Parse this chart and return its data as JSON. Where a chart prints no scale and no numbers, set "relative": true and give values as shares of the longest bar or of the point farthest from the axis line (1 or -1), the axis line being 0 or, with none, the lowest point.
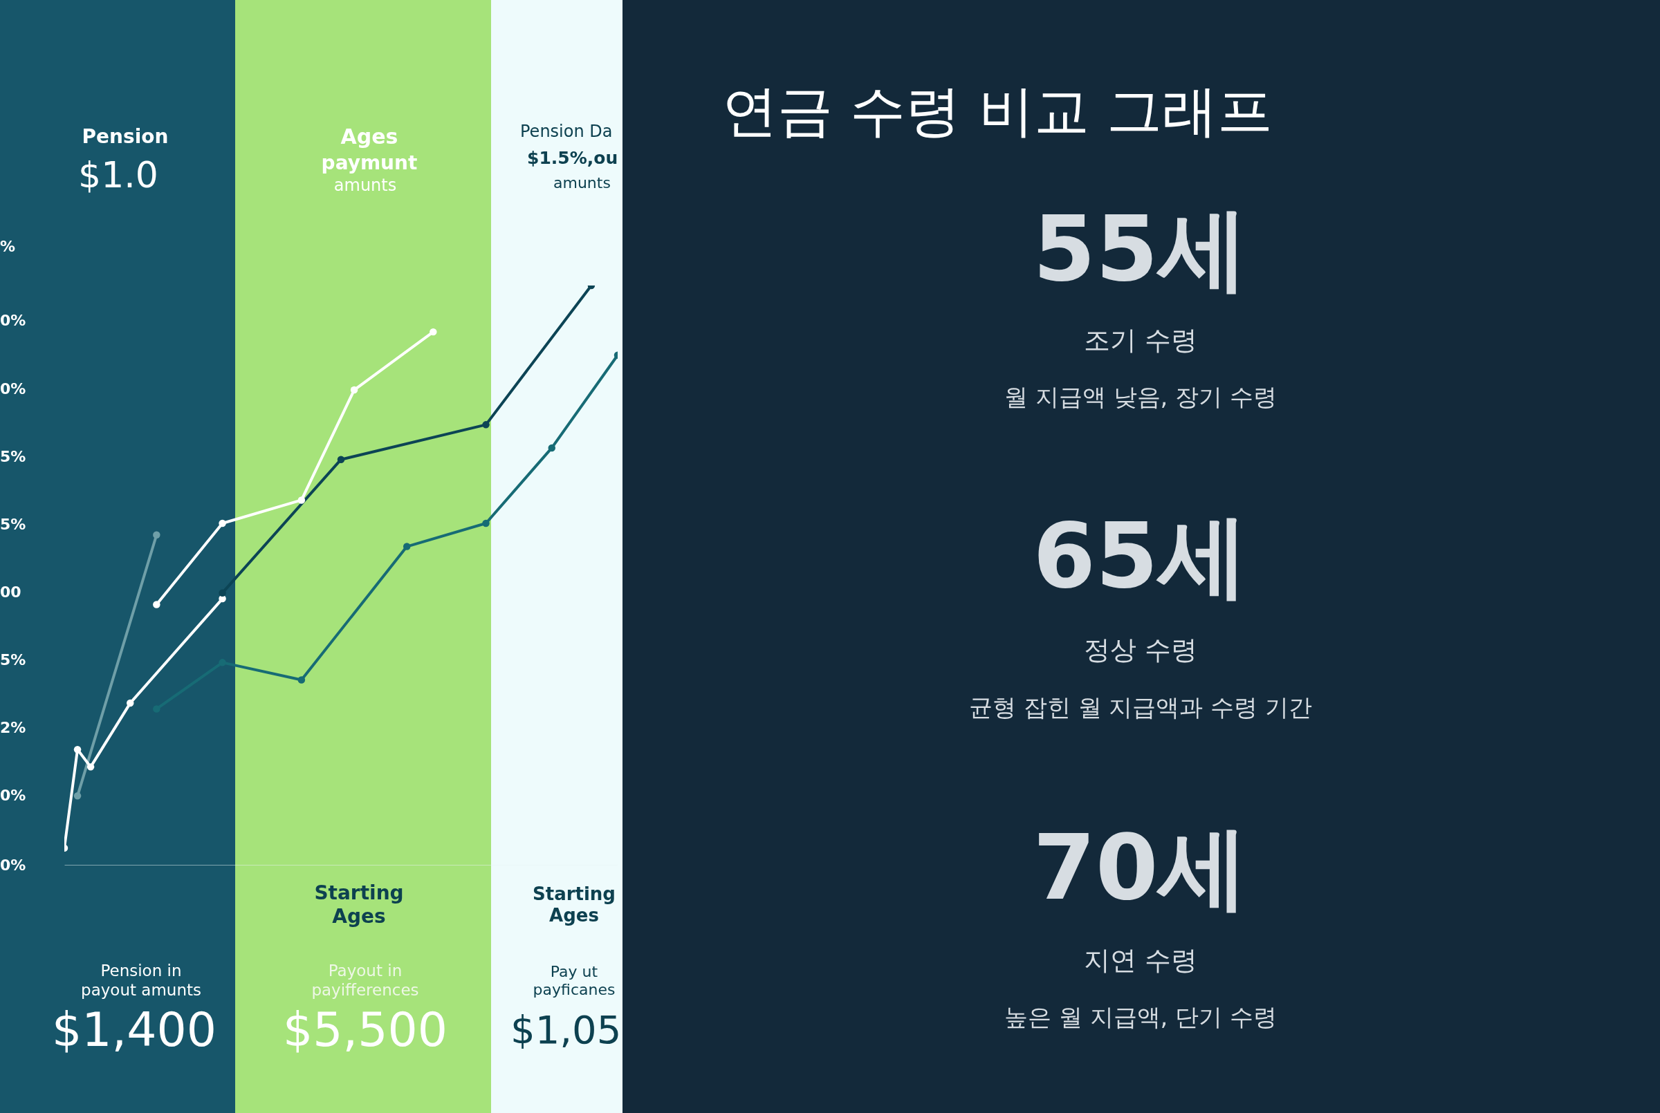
{
  "chart_data": {
    "type": "line",
    "title": "연금 수령 비교 그래프",
    "relative": true,
    "marker": "circle",
    "line_style": "solid",
    "categories": [
      null,
      null,
      null,
      null,
      null,
      null,
      null,
      null,
      null,
      null,
      null,
      null,
      null,
      null,
      null,
      null,
      null,
      null,
      null,
      null,
      null,
      null,
      null,
      null,
      null,
      null,
      null,
      null,
      null,
      null,
      null,
      null,
      null,
      null,
      null,
      null,
      null,
      null,
      null,
      null,
      null,
      null,
      null
    ],
    "series": [
      {
        "color": "#6f9fa8",
        "values": [
          null,
          0.12,
          null,
          null,
          null,
          null,
          null,
          0.57,
          null,
          null,
          null,
          null,
          null,
          null,
          null,
          null,
          null,
          null,
          null,
          null,
          null,
          null,
          null,
          null,
          null,
          null,
          null,
          null,
          null,
          null,
          null,
          null,
          null,
          null,
          null,
          null,
          null,
          null,
          null,
          null,
          null,
          null,
          null
        ]
      },
      {
        "color": "#ffffff",
        "values": [
          0.03,
          0.2,
          0.17,
          null,
          null,
          0.28,
          null,
          null,
          null,
          null,
          null,
          null,
          0.46,
          null,
          null,
          null,
          null,
          null,
          null,
          null,
          null,
          null,
          null,
          null,
          null,
          null,
          null,
          null,
          null,
          null,
          null,
          null,
          null,
          null,
          null,
          null,
          null,
          null,
          null,
          null,
          null,
          null,
          null
        ]
      },
      {
        "color": "#ffffff",
        "values": [
          null,
          null,
          null,
          null,
          null,
          null,
          null,
          0.45,
          null,
          null,
          null,
          null,
          0.59,
          null,
          null,
          null,
          null,
          null,
          0.63,
          null,
          null,
          null,
          0.82,
          null,
          null,
          null,
          null,
          null,
          0.92,
          null,
          null,
          null,
          null,
          null,
          null,
          null,
          null,
          null,
          null,
          null,
          null,
          null,
          null
        ]
      },
      {
        "color": "#0c4455",
        "values": [
          null,
          null,
          null,
          null,
          null,
          null,
          null,
          null,
          null,
          null,
          null,
          null,
          0.47,
          null,
          null,
          null,
          null,
          null,
          null,
          null,
          null,
          0.7,
          null,
          null,
          null,
          null,
          null,
          null,
          null,
          null,
          null,
          null,
          0.76,
          null,
          null,
          null,
          null,
          null,
          null,
          null,
          1,
          null,
          null
        ]
      },
      {
        "color": "#176b75",
        "values": [
          null,
          null,
          null,
          null,
          null,
          null,
          null,
          0.27,
          null,
          null,
          null,
          null,
          0.35,
          null,
          null,
          null,
          null,
          null,
          0.32,
          null,
          null,
          null,
          null,
          null,
          null,
          null,
          0.55,
          null,
          null,
          null,
          null,
          null,
          0.59,
          null,
          null,
          null,
          null,
          0.72,
          null,
          null,
          null,
          null,
          0.88
        ]
      }
    ],
    "annotations": [
      "Pension",
      "$1.0",
      "Ages",
      "paymunt",
      "amunts",
      "Pension Da",
      "$1.5%,ou",
      "amunts",
      "%",
      "0%",
      "0%",
      "5%",
      "5%",
      "00",
      "5%",
      "2%",
      "0%",
      "0%",
      "Starting Ages",
      "Starting Ages",
      "Pension in payout amunts",
      "$1,400",
      "Payout in payifferences",
      "$5,500",
      "Pay ut payficanes",
      "$1,05",
      "55세",
      "조기 수령",
      "월 지급액 낮음, 장기 수령",
      "65세",
      "정상 수령",
      "균형 잡힌 월 지급액과 수령 기간",
      "70세",
      "지연 수령",
      "높은 월 지급액, 단기 수령"
    ]
  }
}
